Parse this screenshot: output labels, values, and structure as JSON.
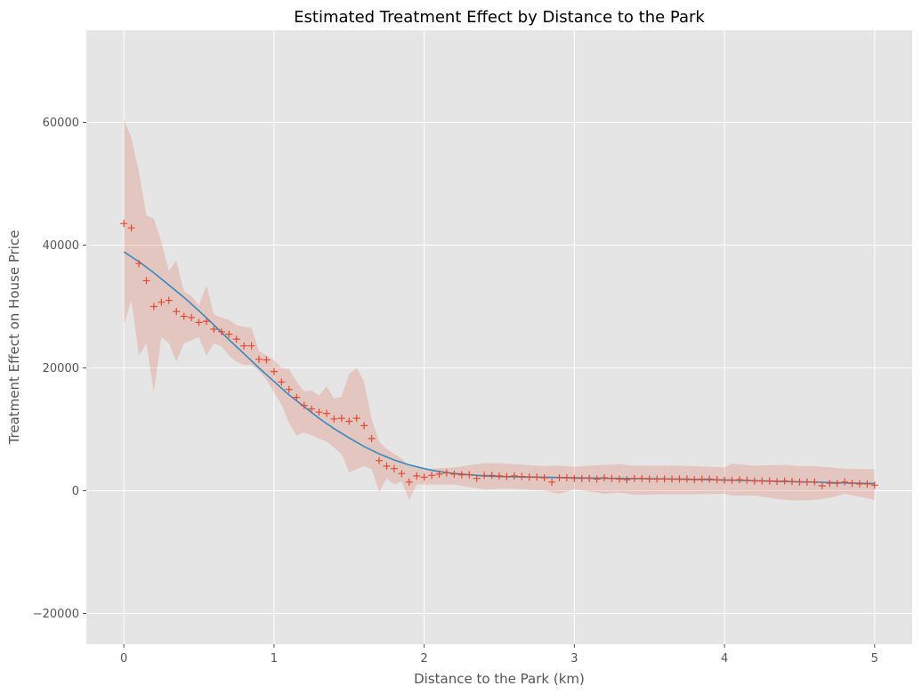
{
  "chart_data": {
    "type": "line",
    "title": "Estimated Treatment Effect by Distance to the Park",
    "xlabel": "Distance to the Park (km)",
    "ylabel": "Treatment Effect on House Price",
    "xlim": [
      -0.25,
      5.25
    ],
    "ylim": [
      -25000,
      75000
    ],
    "x_ticks": [
      0,
      1,
      2,
      3,
      4,
      5
    ],
    "y_ticks": [
      -20000,
      0,
      20000,
      40000,
      60000
    ],
    "x_tick_labels": [
      "0",
      "1",
      "2",
      "3",
      "4",
      "5"
    ],
    "y_tick_labels": [
      "−20000",
      "0",
      "20000",
      "40000",
      "60000"
    ],
    "grid": true,
    "style": "ggplot",
    "colors": {
      "background": "#e5e5e5",
      "grid": "#ffffff",
      "points": "#e24a33",
      "line": "#348abd",
      "band": "#e24a33"
    },
    "series": [
      {
        "kind": "points",
        "marker": "+",
        "x": [
          0,
          0.05,
          0.1,
          0.15,
          0.2,
          0.25,
          0.3,
          0.35,
          0.4,
          0.45,
          0.5,
          0.55,
          0.6,
          0.65,
          0.7,
          0.75,
          0.8,
          0.85,
          0.9,
          0.95,
          1.0,
          1.05,
          1.1,
          1.15,
          1.2,
          1.25,
          1.3,
          1.35,
          1.4,
          1.45,
          1.5,
          1.55,
          1.6,
          1.65,
          1.7,
          1.75,
          1.8,
          1.85,
          1.9,
          1.95,
          2.0,
          2.05,
          2.1,
          2.15,
          2.2,
          2.25,
          2.3,
          2.35,
          2.4,
          2.45,
          2.5,
          2.55,
          2.6,
          2.65,
          2.7,
          2.75,
          2.8,
          2.85,
          2.9,
          2.95,
          3.0,
          3.05,
          3.1,
          3.15,
          3.2,
          3.25,
          3.3,
          3.35,
          3.4,
          3.45,
          3.5,
          3.55,
          3.6,
          3.65,
          3.7,
          3.75,
          3.8,
          3.85,
          3.9,
          3.95,
          4.0,
          4.05,
          4.1,
          4.15,
          4.2,
          4.25,
          4.3,
          4.35,
          4.4,
          4.45,
          4.5,
          4.55,
          4.6,
          4.65,
          4.7,
          4.75,
          4.8,
          4.85,
          4.9,
          4.95,
          5.0
        ],
        "y": [
          43500,
          42800,
          37000,
          34200,
          30000,
          30700,
          31000,
          29200,
          28400,
          28200,
          27400,
          27600,
          26300,
          25900,
          25500,
          24700,
          23600,
          23600,
          21400,
          21300,
          19400,
          17700,
          16500,
          15200,
          13900,
          13300,
          12800,
          12600,
          11700,
          11800,
          11300,
          11800,
          10600,
          8500,
          4900,
          4000,
          3600,
          2800,
          1400,
          2400,
          2200,
          2500,
          2700,
          2900,
          2700,
          2600,
          2600,
          2000,
          2500,
          2500,
          2400,
          2300,
          2400,
          2300,
          2200,
          2200,
          2100,
          1400,
          2100,
          2100,
          2000,
          2000,
          2000,
          1900,
          2100,
          2000,
          1900,
          1800,
          2000,
          2000,
          1900,
          1900,
          1900,
          1900,
          1900,
          1900,
          1800,
          1900,
          1900,
          1800,
          1700,
          1700,
          1800,
          1700,
          1600,
          1600,
          1600,
          1500,
          1600,
          1500,
          1400,
          1400,
          1400,
          800,
          1200,
          1200,
          1400,
          1200,
          1100,
          1100,
          900
        ]
      },
      {
        "kind": "line",
        "x": [
          0,
          0.1,
          0.2,
          0.3,
          0.4,
          0.5,
          0.6,
          0.7,
          0.8,
          0.9,
          1.0,
          1.1,
          1.2,
          1.3,
          1.4,
          1.5,
          1.6,
          1.7,
          1.8,
          1.9,
          2.0,
          2.1,
          2.2,
          2.3,
          2.4,
          2.5,
          2.75,
          3.0,
          3.25,
          3.5,
          3.75,
          4.0,
          4.25,
          4.5,
          4.75,
          5.0
        ],
        "y": [
          38900,
          37300,
          35500,
          33500,
          31500,
          29300,
          27000,
          24600,
          22300,
          20000,
          17800,
          15600,
          13700,
          11800,
          10100,
          8600,
          7200,
          6000,
          5000,
          4200,
          3600,
          3100,
          2800,
          2600,
          2400,
          2300,
          2200,
          2100,
          2000,
          1950,
          1850,
          1750,
          1600,
          1450,
          1300,
          1150
        ]
      },
      {
        "kind": "band",
        "x": [
          0,
          0.05,
          0.1,
          0.15,
          0.2,
          0.25,
          0.3,
          0.35,
          0.4,
          0.45,
          0.5,
          0.55,
          0.6,
          0.65,
          0.7,
          0.75,
          0.8,
          0.85,
          0.9,
          0.95,
          1.0,
          1.05,
          1.1,
          1.15,
          1.2,
          1.25,
          1.3,
          1.35,
          1.4,
          1.45,
          1.5,
          1.55,
          1.6,
          1.65,
          1.7,
          1.75,
          1.8,
          1.85,
          1.9,
          1.95,
          2.0,
          2.2,
          2.4,
          2.5,
          2.6,
          2.8,
          2.9,
          3.0,
          3.2,
          3.3,
          3.4,
          3.6,
          3.8,
          4.0,
          4.05,
          4.2,
          4.4,
          4.5,
          4.6,
          4.7,
          4.8,
          5.0
        ],
        "upper": [
          60500,
          57500,
          52000,
          44800,
          44300,
          40500,
          35800,
          37500,
          32500,
          31700,
          30200,
          33500,
          28700,
          28200,
          27800,
          27000,
          26700,
          26500,
          22800,
          22000,
          21300,
          20000,
          19800,
          17800,
          16200,
          16300,
          15500,
          17000,
          15000,
          15300,
          19000,
          20000,
          17800,
          11700,
          8000,
          6800,
          6000,
          5200,
          4000,
          4000,
          3500,
          3800,
          4500,
          4500,
          4300,
          4000,
          4100,
          3900,
          4200,
          4300,
          4100,
          4100,
          4000,
          3800,
          4400,
          4100,
          4200,
          4000,
          4000,
          3800,
          3600,
          3500
        ],
        "lower": [
          27000,
          31000,
          22000,
          24000,
          16000,
          25000,
          24000,
          21000,
          24000,
          24500,
          25000,
          22000,
          24000,
          23500,
          22000,
          21000,
          20500,
          20500,
          19500,
          18000,
          16000,
          14000,
          11000,
          9000,
          9500,
          9000,
          8500,
          8000,
          7000,
          6000,
          3000,
          3500,
          4000,
          3500,
          -200,
          2000,
          1000,
          1500,
          -1500,
          1000,
          1000,
          1000,
          200,
          300,
          300,
          0,
          -500,
          200,
          -500,
          -300,
          -700,
          -600,
          -600,
          -500,
          -800,
          -800,
          -1500,
          -1600,
          -1500,
          -1200,
          -500,
          -1500
        ]
      }
    ]
  }
}
